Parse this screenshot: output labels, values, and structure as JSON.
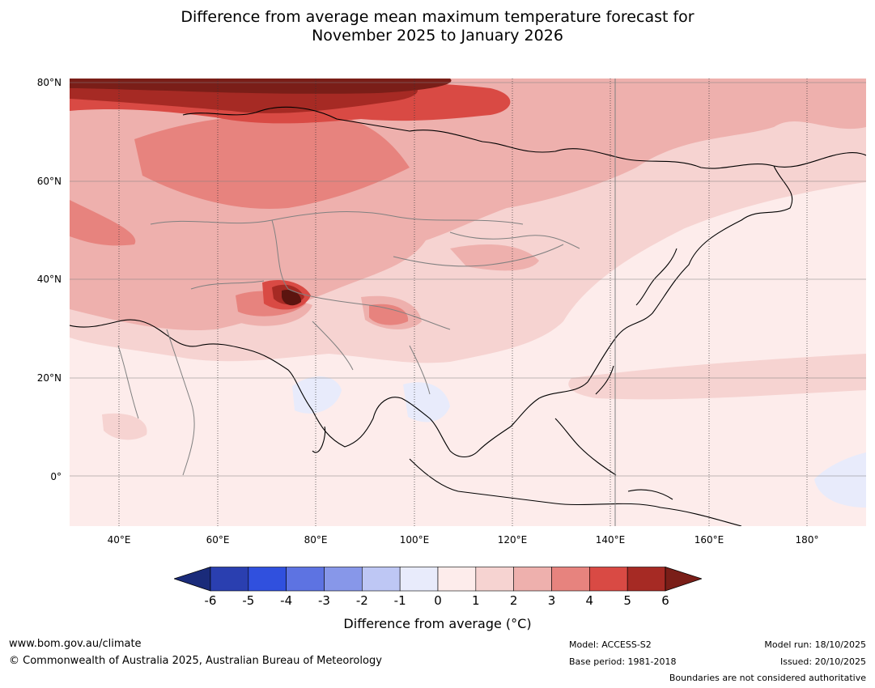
{
  "title": {
    "line1": "Difference from average mean maximum temperature forecast for",
    "line2": "November 2025 to January 2026"
  },
  "map": {
    "lat_labels": [
      "80°N",
      "60°N",
      "40°N",
      "20°N",
      "0°"
    ],
    "lon_labels": [
      "40°E",
      "60°E",
      "80°E",
      "100°E",
      "120°E",
      "140°E",
      "160°E",
      "180°"
    ],
    "lon_range": [
      30,
      191
    ],
    "lat_range": [
      -10,
      81
    ]
  },
  "legend": {
    "ticks": [
      "-6",
      "-5",
      "-4",
      "-3",
      "-2",
      "-1",
      "0",
      "1",
      "2",
      "3",
      "4",
      "5",
      "6"
    ],
    "colors": [
      "#1a2b7a",
      "#2a3fb0",
      "#3050de",
      "#5d73e2",
      "#8797e9",
      "#bec7f4",
      "#e8ebfb",
      "#fdeceb",
      "#f6d3d1",
      "#eeb0ad",
      "#e7837e",
      "#d94a44",
      "#a62a24",
      "#7a1e18"
    ],
    "label": "Difference from average (°C)"
  },
  "footer": {
    "url": "www.bom.gov.au/climate",
    "copyright": "© Commonwealth of Australia 2025, Australian Bureau of Meteorology",
    "model": "Model: ACCESS-S2",
    "base_period": "Base period: 1981-2018",
    "model_run": "Model run: 18/10/2025",
    "issued": "Issued: 20/10/2025",
    "disclaimer": "Boundaries are not considered authoritative"
  }
}
